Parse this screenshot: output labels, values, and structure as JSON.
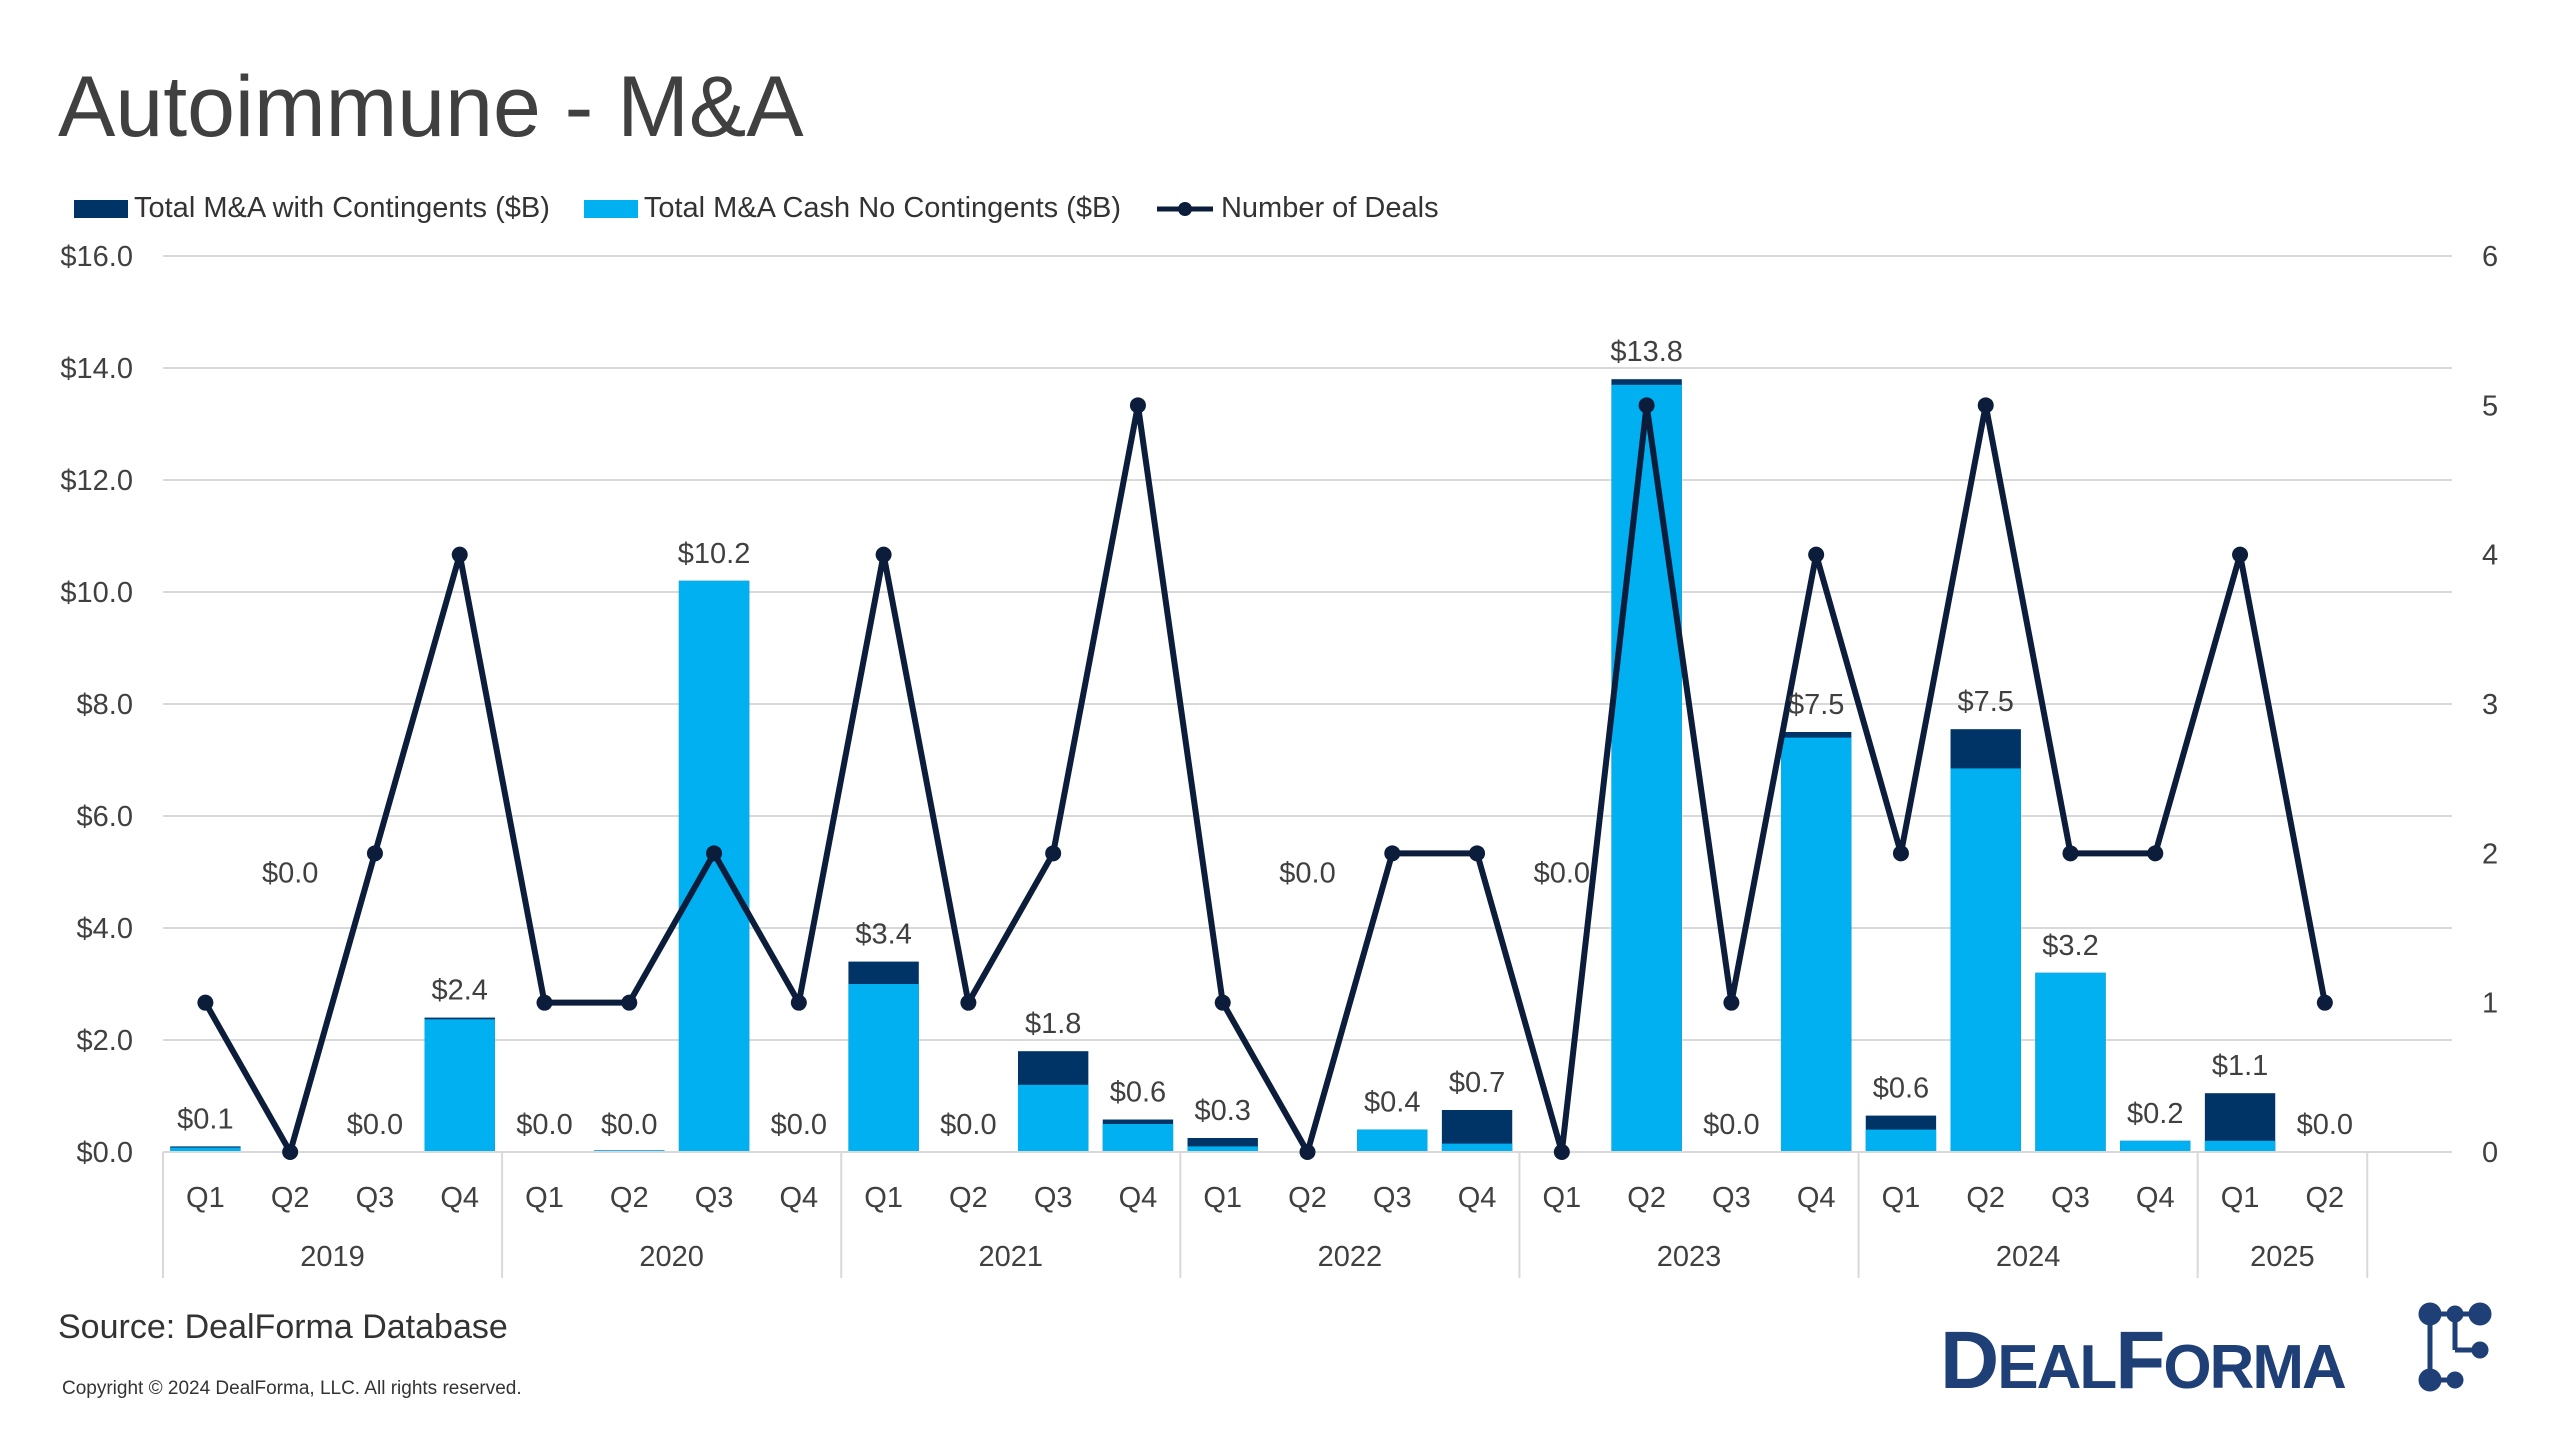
{
  "title": "Autoimmune - M&A",
  "source": "Source: DealForma Database",
  "copyright": "Copyright © 2024 DealForma, LLC. All rights reserved.",
  "logo_text": "DEALFORMA",
  "colors": {
    "contingents": "#003366",
    "cash": "#00B0F0",
    "deals": "#0B1D3A",
    "grid": "#D9D9D9"
  },
  "chart_data": {
    "type": "bar",
    "title": "Autoimmune - M&A",
    "legend_placement": "top-left",
    "grid": true,
    "legend": [
      "Total M&A with Contingents ($B)",
      "Total M&A Cash No Contingents ($B)",
      "Number of Deals"
    ],
    "categories": [
      "Q1",
      "Q2",
      "Q3",
      "Q4",
      "Q1",
      "Q2",
      "Q3",
      "Q4",
      "Q1",
      "Q2",
      "Q3",
      "Q4",
      "Q1",
      "Q2",
      "Q3",
      "Q4",
      "Q1",
      "Q2",
      "Q3",
      "Q4",
      "Q1",
      "Q2",
      "Q3",
      "Q4",
      "Q1",
      "Q2"
    ],
    "years": [
      {
        "label": "2019",
        "quarters": 4
      },
      {
        "label": "2020",
        "quarters": 4
      },
      {
        "label": "2021",
        "quarters": 4
      },
      {
        "label": "2022",
        "quarters": 4
      },
      {
        "label": "2023",
        "quarters": 4
      },
      {
        "label": "2024",
        "quarters": 4
      },
      {
        "label": "2025",
        "quarters": 2
      }
    ],
    "y_left": {
      "ylim": [
        0,
        16
      ],
      "ticks": [
        "$0.0",
        "$2.0",
        "$4.0",
        "$6.0",
        "$8.0",
        "$10.0",
        "$12.0",
        "$14.0",
        "$16.0"
      ]
    },
    "y_right": {
      "ylim": [
        0,
        6
      ],
      "ticks": [
        "0",
        "1",
        "2",
        "3",
        "4",
        "5",
        "6"
      ]
    },
    "series": [
      {
        "name": "Total M&A with Contingents ($B)",
        "type": "bar-stacked",
        "values": [
          0.1,
          0,
          0,
          2.4,
          0,
          0.03,
          10.2,
          0,
          3.4,
          0,
          1.8,
          0.58,
          0.25,
          0,
          0.4,
          0.75,
          0,
          13.8,
          0,
          7.5,
          0.65,
          7.55,
          3.2,
          0.2,
          1.05,
          0
        ]
      },
      {
        "name": "Total M&A Cash No Contingents ($B)",
        "type": "bar",
        "values": [
          0.08,
          0,
          0,
          2.37,
          0,
          0.03,
          10.2,
          0,
          3.0,
          0,
          1.2,
          0.5,
          0.1,
          0,
          0.4,
          0.15,
          0,
          13.7,
          0,
          7.4,
          0.4,
          6.85,
          3.2,
          0.2,
          0.2,
          0
        ]
      },
      {
        "name": "Number of Deals",
        "type": "line",
        "axis": "right",
        "values": [
          1,
          0,
          2,
          4,
          1,
          1,
          2,
          1,
          4,
          1,
          2,
          5,
          1,
          0,
          2,
          2,
          0,
          5,
          1,
          4,
          2,
          5,
          2,
          2,
          4,
          1
        ]
      }
    ],
    "data_labels": [
      "$0.1",
      "$0.0",
      "$0.0",
      "$2.4",
      "$0.0",
      "$0.0",
      "$10.2",
      "$0.0",
      "$3.4",
      "$0.0",
      "$1.8",
      "$0.6",
      "$0.3",
      "$0.0",
      "$0.4",
      "$0.7",
      "$0.0",
      "$13.8",
      "$0.0",
      "$7.5",
      "$0.6",
      "$7.5",
      "$3.2",
      "$0.2",
      "$1.1",
      "$0.0"
    ]
  }
}
